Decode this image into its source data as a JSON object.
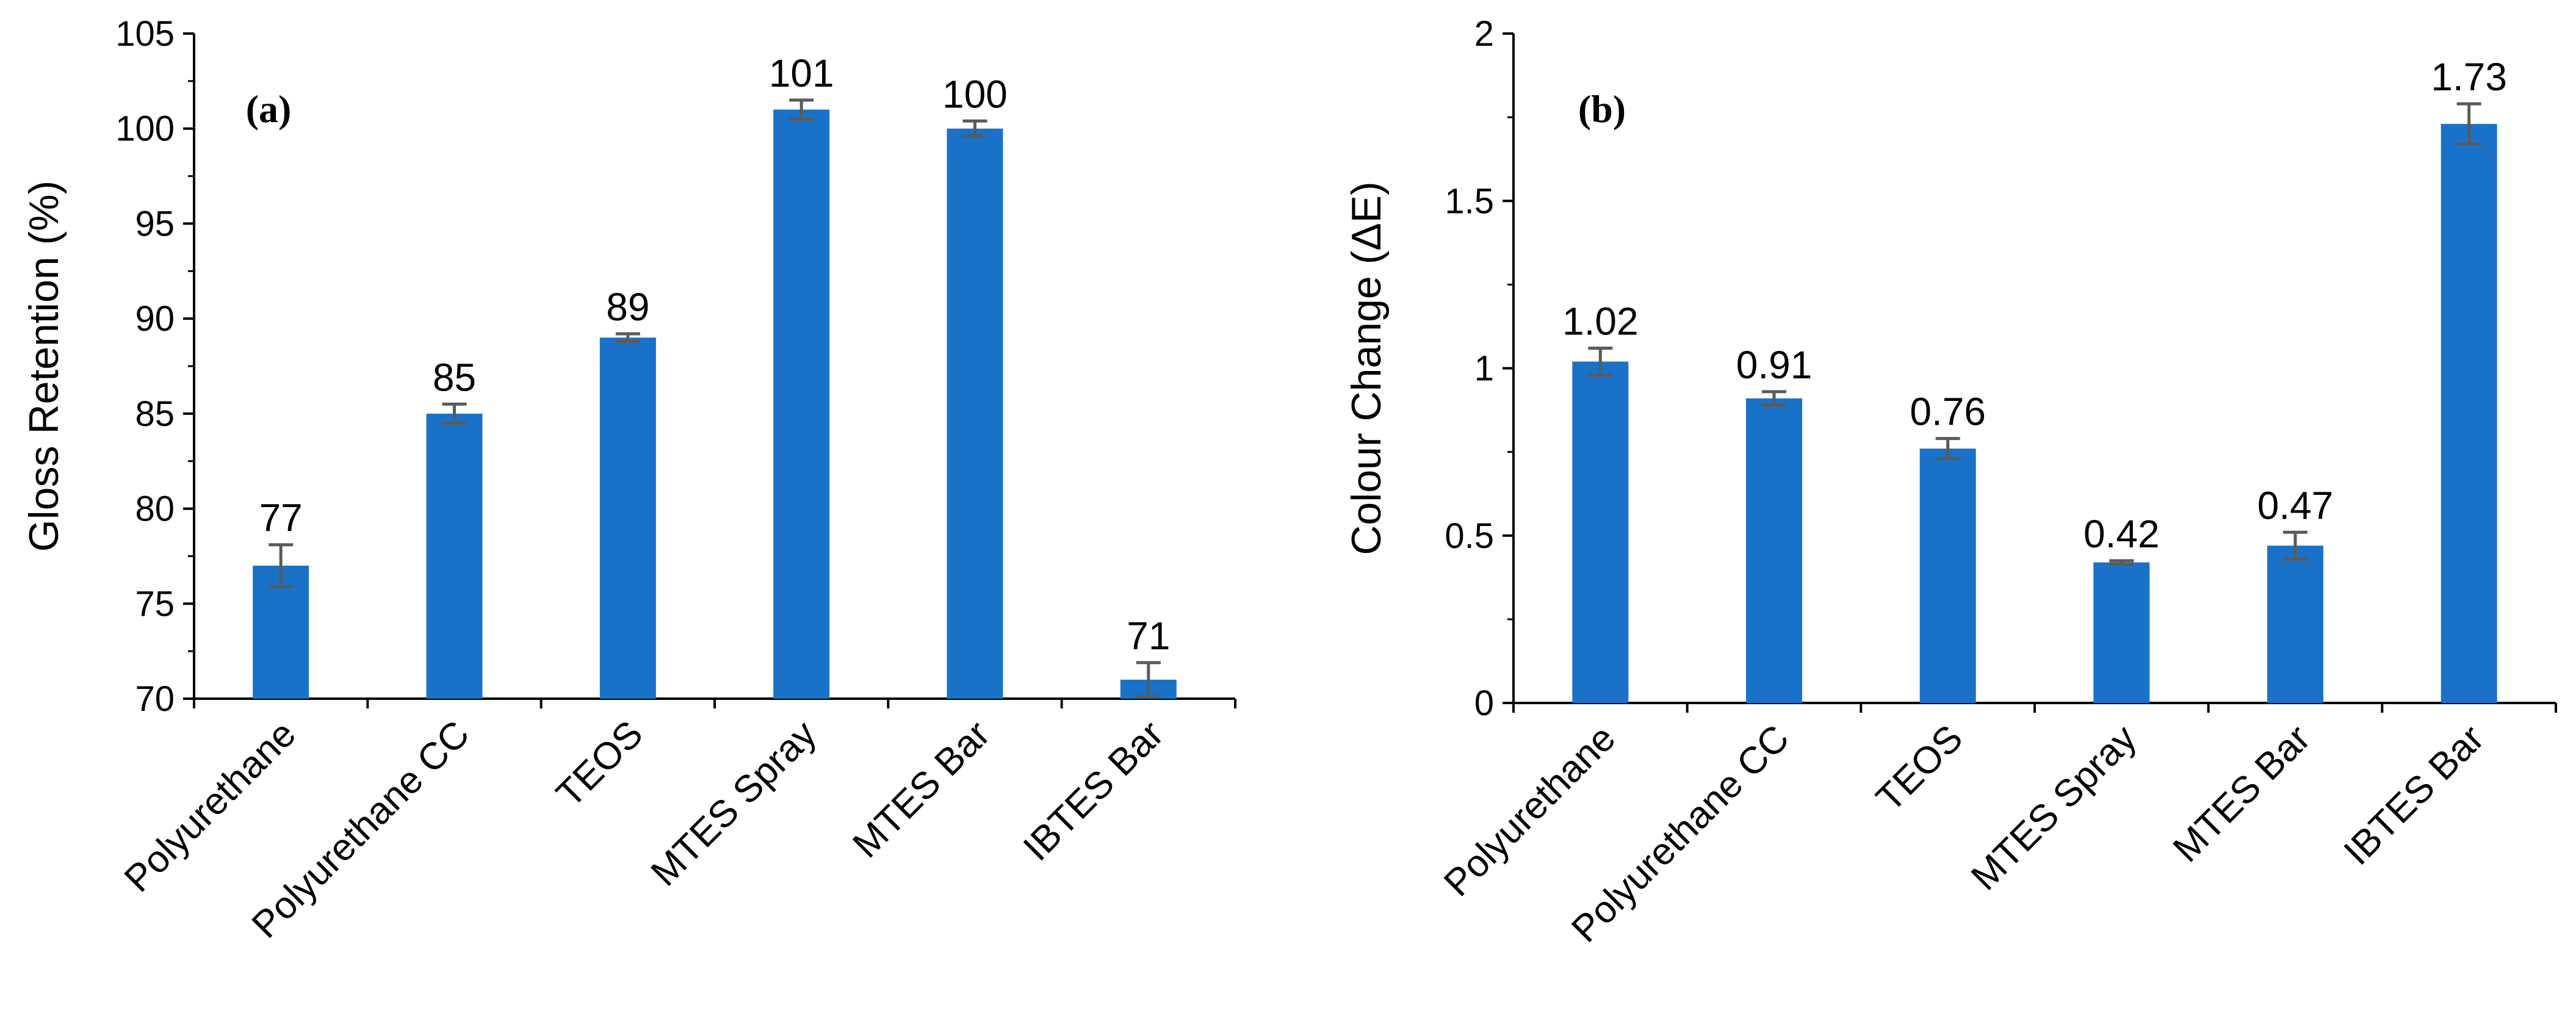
{
  "chart_data": [
    {
      "type": "bar",
      "panel_label": "(a)",
      "title": "",
      "xlabel": "",
      "ylabel": "Gloss Retention (%)",
      "ylim": [
        70,
        105
      ],
      "ytick_step": 5,
      "yticks": [
        "70",
        "75",
        "80",
        "85",
        "90",
        "95",
        "100",
        "105"
      ],
      "categories": [
        "Polyurethane",
        "Polyurethane CC",
        "TEOS",
        "MTES Spray",
        "MTES Bar",
        "IBTES Bar"
      ],
      "values": [
        77,
        85,
        89,
        101,
        100,
        71
      ],
      "value_labels": [
        "77",
        "85",
        "89",
        "101",
        "100",
        "71"
      ],
      "errors": [
        1.1,
        0.5,
        0.2,
        0.5,
        0.4,
        0.9
      ],
      "color": "#1a72c8",
      "error_color": "#5a5a5a",
      "grid": false
    },
    {
      "type": "bar",
      "panel_label": "(b)",
      "title": "",
      "xlabel": "",
      "ylabel": "Colour Change (ΔE)",
      "ylim": [
        0,
        2
      ],
      "ytick_step": 0.5,
      "yticks": [
        "0",
        "0.5",
        "1",
        "1.5",
        "2"
      ],
      "categories": [
        "Polyurethane",
        "Polyurethane CC",
        "TEOS",
        "MTES Spray",
        "MTES Bar",
        "IBTES Bar"
      ],
      "values": [
        1.02,
        0.91,
        0.76,
        0.42,
        0.47,
        1.73
      ],
      "value_labels": [
        "1.02",
        "0.91",
        "0.76",
        "0.42",
        "0.47",
        "1.73"
      ],
      "errors": [
        0.04,
        0.02,
        0.03,
        0.005,
        0.04,
        0.06
      ],
      "color": "#1a72c8",
      "error_color": "#5a5a5a",
      "grid": false
    }
  ]
}
